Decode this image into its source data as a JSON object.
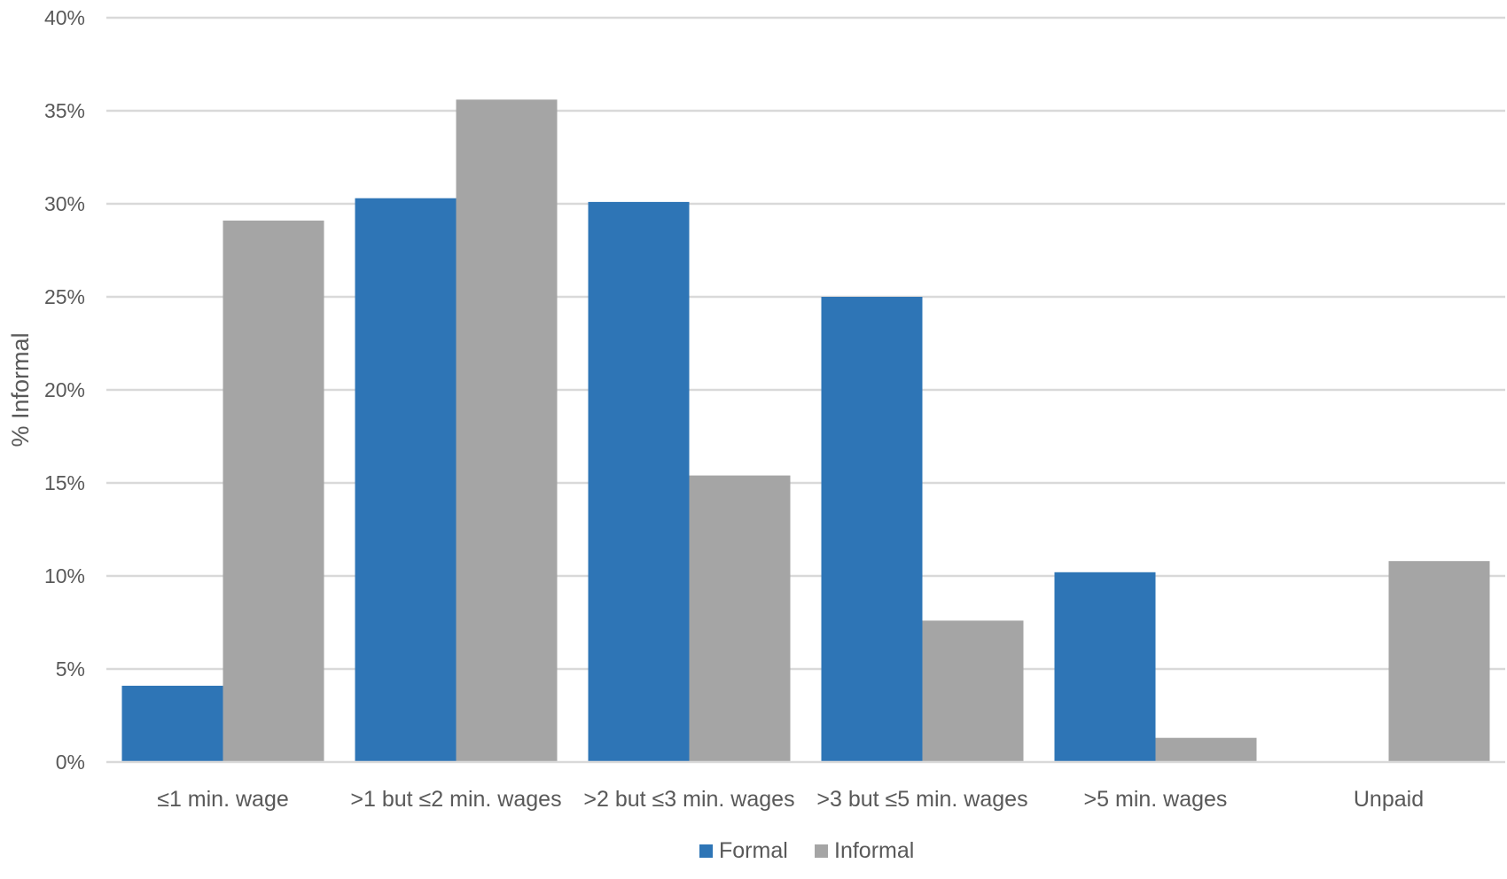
{
  "chart_data": {
    "type": "bar",
    "title": "",
    "xlabel": "",
    "ylabel": "% Informal",
    "ylim": [
      0,
      40
    ],
    "y_ticks": [
      "0%",
      "5%",
      "10%",
      "15%",
      "20%",
      "25%",
      "30%",
      "35%",
      "40%"
    ],
    "categories": [
      "≤1 min. wage",
      ">1 but ≤2 min. wages",
      ">2 but ≤3 min. wages",
      ">3 but ≤5 min. wages",
      ">5 min. wages",
      "Unpaid"
    ],
    "series": [
      {
        "name": "Formal",
        "color": "#2e75b6",
        "values": [
          4.1,
          30.3,
          30.1,
          25.0,
          10.2,
          0
        ]
      },
      {
        "name": "Informal",
        "color": "#a5a5a5",
        "values": [
          29.1,
          35.6,
          15.4,
          7.6,
          1.3,
          10.8
        ]
      }
    ],
    "grid": true,
    "legend_position": "bottom"
  }
}
